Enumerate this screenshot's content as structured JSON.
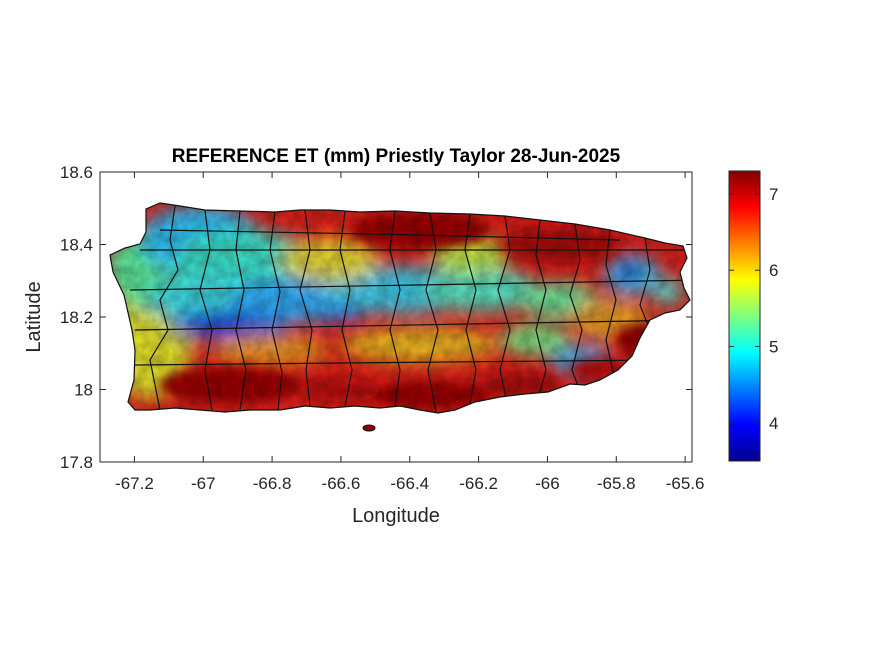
{
  "chart_data": {
    "type": "heatmap",
    "title": "REFERENCE ET (mm) Priestly Taylor 28-Jun-2025",
    "xlabel": "Longitude",
    "ylabel": "Latitude",
    "xlim": [
      -67.3,
      -65.58
    ],
    "ylim": [
      17.8,
      18.6
    ],
    "x_ticks": [
      "-67.2",
      "-67",
      "-66.8",
      "-66.6",
      "-66.4",
      "-66.2",
      "-66",
      "-65.8",
      "-65.6"
    ],
    "y_ticks": [
      "18.6",
      "18.4",
      "18.2",
      "18",
      "17.8"
    ],
    "colorbar": {
      "colormap": "jet",
      "range": [
        3.5,
        7.3
      ],
      "ticks": [
        "7",
        "6",
        "5",
        "4"
      ]
    },
    "region": "Puerto Rico municipalities",
    "value_summary": {
      "north_coast_and_east": "high (6.5-7.3)",
      "central_cordillera_band": "low (4.0-5.2)",
      "south_coast": "high (6.5-7.3)",
      "west": "moderate (5.0-6.0)"
    }
  }
}
